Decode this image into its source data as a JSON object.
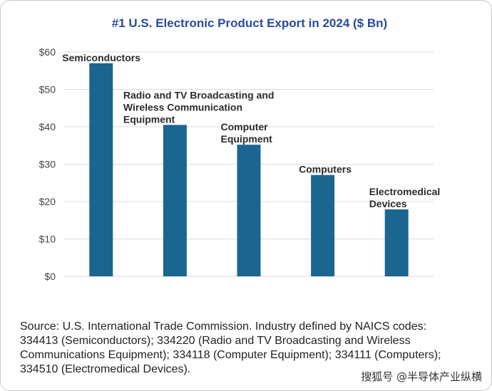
{
  "chart_data": {
    "type": "bar",
    "title": "#1 U.S. Electronic Product Export in 2024 ($ Bn)",
    "categories": [
      [
        "Semiconductors"
      ],
      [
        "Radio and TV Broadcasting and",
        "Wireless Communication",
        "Equipment"
      ],
      [
        "Computer",
        "Equipment"
      ],
      [
        "Computers"
      ],
      [
        "Electromedical",
        "Devices"
      ]
    ],
    "values": [
      57,
      40.5,
      35.2,
      27.1,
      17.9
    ],
    "y_ticks": [
      "$0",
      "$10",
      "$20",
      "$30",
      "$40",
      "$50",
      "$60"
    ],
    "ylim": [
      0,
      60
    ],
    "grid": true,
    "bar_color": "#1a6690"
  },
  "source_lines": [
    "Source: U.S. International Trade Commission. Industry defined by NAICS codes:",
    "334413 (Semiconductors); 334220 (Radio and TV Broadcasting and Wireless",
    "Communications Equipment); 334118 (Computer Equipment); 334111 (Computers);",
    "334510 (Electromedical Devices)."
  ],
  "watermark": "搜狐号 @半导体产业纵横"
}
